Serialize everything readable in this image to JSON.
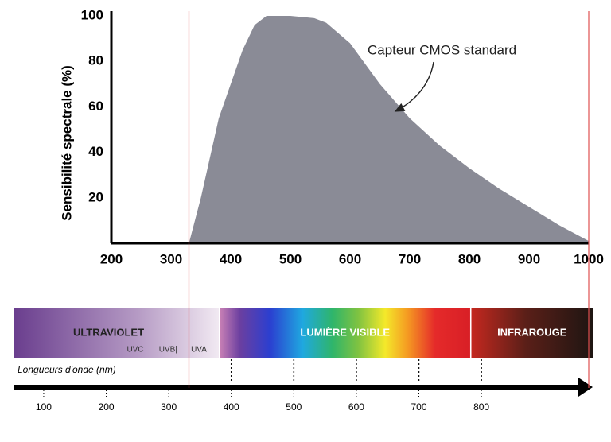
{
  "chart_data": [
    {
      "type": "area",
      "y_label": "Sensibilité spectrale (%)",
      "annotation": "Capteur CMOS standard",
      "x": [
        330,
        350,
        380,
        420,
        440,
        460,
        500,
        540,
        560,
        600,
        650,
        700,
        750,
        800,
        850,
        900,
        950,
        1000
      ],
      "y": [
        0,
        20,
        55,
        85,
        96,
        100,
        100,
        99,
        97,
        88,
        70,
        55,
        43,
        33,
        24,
        16,
        8,
        1
      ],
      "color": "#8a8b96",
      "xlim": [
        200,
        1000
      ],
      "xticks": [
        200,
        300,
        400,
        500,
        600,
        700,
        800,
        900,
        1000
      ],
      "ylim": [
        0,
        100
      ],
      "yticks": [
        20,
        40,
        60,
        80,
        100
      ],
      "markers": [
        330,
        1000
      ],
      "marker_color": "#e05050"
    },
    {
      "type": "spectrum",
      "x_label": "Longueurs d'onde (nm)",
      "xlim": [
        53,
        978
      ],
      "xticks": [
        100,
        200,
        300,
        400,
        500,
        600,
        700,
        800
      ],
      "dotted": [
        400,
        500,
        600,
        700,
        800
      ],
      "regions": [
        {
          "label": "ULTRAVIOLET",
          "from": 53,
          "to": 380
        },
        {
          "label": "LUMIÈRE VISIBLE",
          "from": 382,
          "to": 782
        },
        {
          "label": "INFRAROUGE",
          "from": 784,
          "to": 978
        }
      ],
      "sublabels": [
        "UVC",
        "|UVB|",
        "UVA"
      ]
    }
  ]
}
